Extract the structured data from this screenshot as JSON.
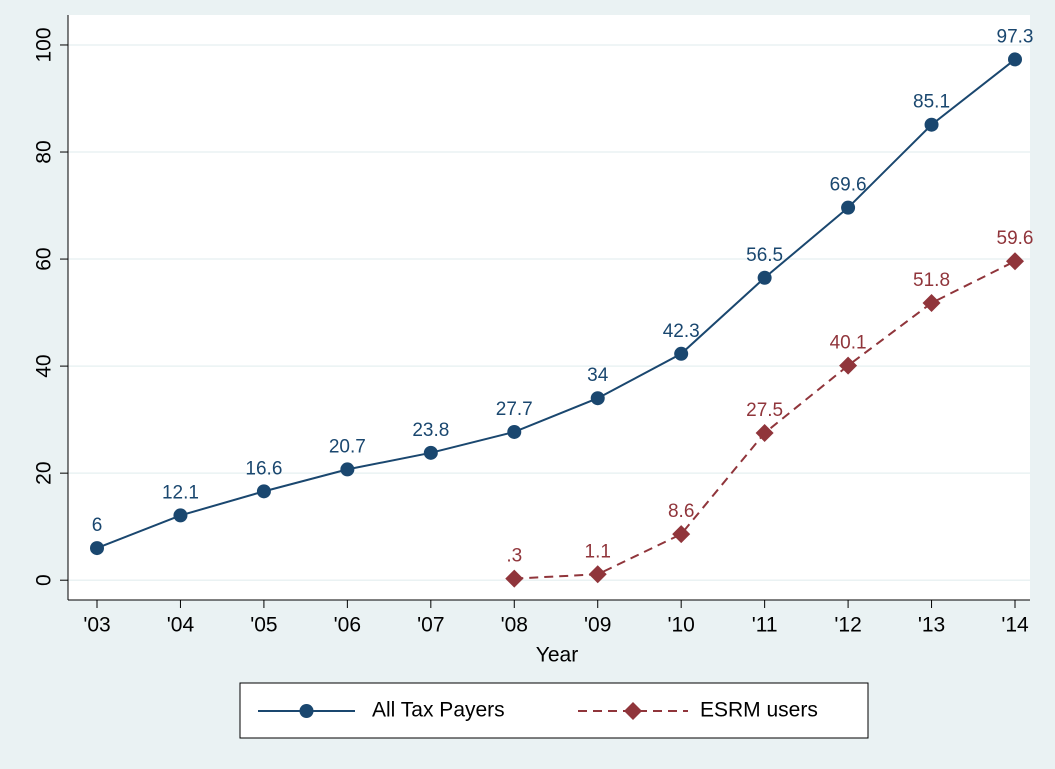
{
  "chart_data": {
    "type": "line",
    "x_label": "Year",
    "categories": [
      "'03",
      "'04",
      "'05",
      "'06",
      "'07",
      "'08",
      "'09",
      "'10",
      "'11",
      "'12",
      "'13",
      "'14"
    ],
    "series": [
      {
        "name": "All Tax Payers",
        "color": "#1a476f",
        "marker": "circle",
        "dash": false,
        "values": [
          6,
          12.1,
          16.6,
          20.7,
          23.8,
          27.7,
          34,
          42.3,
          56.5,
          69.6,
          85.1,
          97.3
        ]
      },
      {
        "name": "ESRM users",
        "color": "#90353b",
        "marker": "diamond",
        "dash": true,
        "values": [
          null,
          null,
          null,
          null,
          null,
          0.3,
          1.1,
          8.6,
          27.5,
          40.1,
          51.8,
          59.6
        ],
        "value_labels": [
          null,
          null,
          null,
          null,
          null,
          ".3",
          "1.1",
          "8.6",
          "27.5",
          "40.1",
          "51.8",
          "59.6"
        ]
      }
    ],
    "ylim": [
      -3.7,
      105.6
    ],
    "yticks": [
      0,
      20,
      40,
      60,
      80,
      100
    ],
    "grid": true,
    "legend": "bottom"
  }
}
